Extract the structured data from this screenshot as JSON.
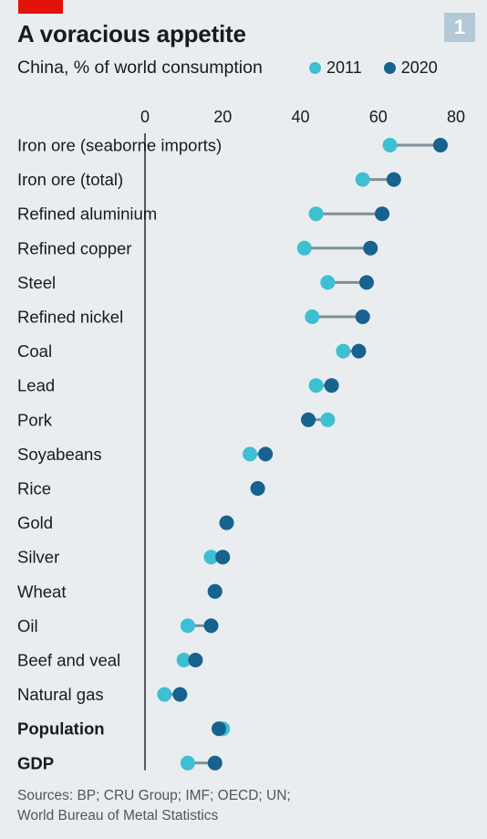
{
  "badge": "1",
  "colors": {
    "c2011": "#3ebfd2",
    "c2020": "#17628f",
    "connector": "#7f8f98",
    "axis": "#5a5a5a"
  },
  "chart_data": {
    "type": "dot-plot",
    "title": "A voracious appetite",
    "subtitle": "China, % of world consumption",
    "xlim": [
      0,
      80
    ],
    "xticks": [
      "0",
      "20",
      "40",
      "60",
      "80"
    ],
    "series": [
      {
        "name": "2011"
      },
      {
        "name": "2020"
      }
    ],
    "categories": [
      {
        "label": "Iron ore (seaborne imports)",
        "y2011": 63,
        "y2020": 76,
        "bold": false
      },
      {
        "label": "Iron ore (total)",
        "y2011": 56,
        "y2020": 64,
        "bold": false
      },
      {
        "label": "Refined aluminium",
        "y2011": 44,
        "y2020": 61,
        "bold": false
      },
      {
        "label": "Refined copper",
        "y2011": 41,
        "y2020": 58,
        "bold": false
      },
      {
        "label": "Steel",
        "y2011": 47,
        "y2020": 57,
        "bold": false
      },
      {
        "label": "Refined nickel",
        "y2011": 43,
        "y2020": 56,
        "bold": false
      },
      {
        "label": "Coal",
        "y2011": 51,
        "y2020": 55,
        "bold": false
      },
      {
        "label": "Lead",
        "y2011": 44,
        "y2020": 48,
        "bold": false
      },
      {
        "label": "Pork",
        "y2011": 47,
        "y2020": 42,
        "bold": false
      },
      {
        "label": "Soyabeans",
        "y2011": 27,
        "y2020": 31,
        "bold": false
      },
      {
        "label": "Rice",
        "y2011": 29,
        "y2020": 29,
        "bold": false
      },
      {
        "label": "Gold",
        "y2011": 21,
        "y2020": 21,
        "bold": false
      },
      {
        "label": "Silver",
        "y2011": 17,
        "y2020": 20,
        "bold": false
      },
      {
        "label": "Wheat",
        "y2011": 18,
        "y2020": 18,
        "bold": false
      },
      {
        "label": "Oil",
        "y2011": 11,
        "y2020": 17,
        "bold": false
      },
      {
        "label": "Beef and veal",
        "y2011": 10,
        "y2020": 13,
        "bold": false
      },
      {
        "label": "Natural gas",
        "y2011": 5,
        "y2020": 9,
        "bold": false
      },
      {
        "label": "Population",
        "y2011": 20,
        "y2020": 19,
        "bold": true
      },
      {
        "label": "GDP",
        "y2011": 11,
        "y2020": 18,
        "bold": true
      }
    ]
  },
  "source_line1": "Sources: BP; CRU Group; IMF; OECD; UN;",
  "source_line2": "World Bureau of Metal Statistics"
}
